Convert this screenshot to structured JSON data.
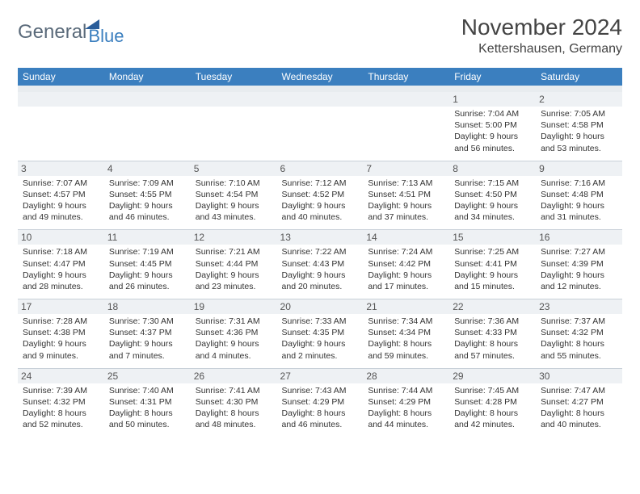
{
  "brand": {
    "name_gray": "General",
    "name_blue": "Blue"
  },
  "title": "November 2024",
  "location": "Kettershausen, Germany",
  "colors": {
    "header_bg": "#3b7fbf",
    "header_text": "#ffffff",
    "daynum_bg": "#eef1f4",
    "body_text": "#333333",
    "border": "#c8d0d8",
    "logo_gray": "#5a6a7a",
    "logo_blue": "#3b7fbf",
    "logo_triangle": "#2a5d9a",
    "background": "#ffffff"
  },
  "typography": {
    "title_fontsize": 28,
    "location_fontsize": 16,
    "header_fontsize": 12,
    "cell_fontsize": 10.5,
    "font_family": "Arial"
  },
  "day_headers": [
    "Sunday",
    "Monday",
    "Tuesday",
    "Wednesday",
    "Thursday",
    "Friday",
    "Saturday"
  ],
  "weeks": [
    [
      {
        "n": "",
        "sr": "",
        "ss": "",
        "dl": ""
      },
      {
        "n": "",
        "sr": "",
        "ss": "",
        "dl": ""
      },
      {
        "n": "",
        "sr": "",
        "ss": "",
        "dl": ""
      },
      {
        "n": "",
        "sr": "",
        "ss": "",
        "dl": ""
      },
      {
        "n": "",
        "sr": "",
        "ss": "",
        "dl": ""
      },
      {
        "n": "1",
        "sr": "Sunrise: 7:04 AM",
        "ss": "Sunset: 5:00 PM",
        "dl": "Daylight: 9 hours and 56 minutes."
      },
      {
        "n": "2",
        "sr": "Sunrise: 7:05 AM",
        "ss": "Sunset: 4:58 PM",
        "dl": "Daylight: 9 hours and 53 minutes."
      }
    ],
    [
      {
        "n": "3",
        "sr": "Sunrise: 7:07 AM",
        "ss": "Sunset: 4:57 PM",
        "dl": "Daylight: 9 hours and 49 minutes."
      },
      {
        "n": "4",
        "sr": "Sunrise: 7:09 AM",
        "ss": "Sunset: 4:55 PM",
        "dl": "Daylight: 9 hours and 46 minutes."
      },
      {
        "n": "5",
        "sr": "Sunrise: 7:10 AM",
        "ss": "Sunset: 4:54 PM",
        "dl": "Daylight: 9 hours and 43 minutes."
      },
      {
        "n": "6",
        "sr": "Sunrise: 7:12 AM",
        "ss": "Sunset: 4:52 PM",
        "dl": "Daylight: 9 hours and 40 minutes."
      },
      {
        "n": "7",
        "sr": "Sunrise: 7:13 AM",
        "ss": "Sunset: 4:51 PM",
        "dl": "Daylight: 9 hours and 37 minutes."
      },
      {
        "n": "8",
        "sr": "Sunrise: 7:15 AM",
        "ss": "Sunset: 4:50 PM",
        "dl": "Daylight: 9 hours and 34 minutes."
      },
      {
        "n": "9",
        "sr": "Sunrise: 7:16 AM",
        "ss": "Sunset: 4:48 PM",
        "dl": "Daylight: 9 hours and 31 minutes."
      }
    ],
    [
      {
        "n": "10",
        "sr": "Sunrise: 7:18 AM",
        "ss": "Sunset: 4:47 PM",
        "dl": "Daylight: 9 hours and 28 minutes."
      },
      {
        "n": "11",
        "sr": "Sunrise: 7:19 AM",
        "ss": "Sunset: 4:45 PM",
        "dl": "Daylight: 9 hours and 26 minutes."
      },
      {
        "n": "12",
        "sr": "Sunrise: 7:21 AM",
        "ss": "Sunset: 4:44 PM",
        "dl": "Daylight: 9 hours and 23 minutes."
      },
      {
        "n": "13",
        "sr": "Sunrise: 7:22 AM",
        "ss": "Sunset: 4:43 PM",
        "dl": "Daylight: 9 hours and 20 minutes."
      },
      {
        "n": "14",
        "sr": "Sunrise: 7:24 AM",
        "ss": "Sunset: 4:42 PM",
        "dl": "Daylight: 9 hours and 17 minutes."
      },
      {
        "n": "15",
        "sr": "Sunrise: 7:25 AM",
        "ss": "Sunset: 4:41 PM",
        "dl": "Daylight: 9 hours and 15 minutes."
      },
      {
        "n": "16",
        "sr": "Sunrise: 7:27 AM",
        "ss": "Sunset: 4:39 PM",
        "dl": "Daylight: 9 hours and 12 minutes."
      }
    ],
    [
      {
        "n": "17",
        "sr": "Sunrise: 7:28 AM",
        "ss": "Sunset: 4:38 PM",
        "dl": "Daylight: 9 hours and 9 minutes."
      },
      {
        "n": "18",
        "sr": "Sunrise: 7:30 AM",
        "ss": "Sunset: 4:37 PM",
        "dl": "Daylight: 9 hours and 7 minutes."
      },
      {
        "n": "19",
        "sr": "Sunrise: 7:31 AM",
        "ss": "Sunset: 4:36 PM",
        "dl": "Daylight: 9 hours and 4 minutes."
      },
      {
        "n": "20",
        "sr": "Sunrise: 7:33 AM",
        "ss": "Sunset: 4:35 PM",
        "dl": "Daylight: 9 hours and 2 minutes."
      },
      {
        "n": "21",
        "sr": "Sunrise: 7:34 AM",
        "ss": "Sunset: 4:34 PM",
        "dl": "Daylight: 8 hours and 59 minutes."
      },
      {
        "n": "22",
        "sr": "Sunrise: 7:36 AM",
        "ss": "Sunset: 4:33 PM",
        "dl": "Daylight: 8 hours and 57 minutes."
      },
      {
        "n": "23",
        "sr": "Sunrise: 7:37 AM",
        "ss": "Sunset: 4:32 PM",
        "dl": "Daylight: 8 hours and 55 minutes."
      }
    ],
    [
      {
        "n": "24",
        "sr": "Sunrise: 7:39 AM",
        "ss": "Sunset: 4:32 PM",
        "dl": "Daylight: 8 hours and 52 minutes."
      },
      {
        "n": "25",
        "sr": "Sunrise: 7:40 AM",
        "ss": "Sunset: 4:31 PM",
        "dl": "Daylight: 8 hours and 50 minutes."
      },
      {
        "n": "26",
        "sr": "Sunrise: 7:41 AM",
        "ss": "Sunset: 4:30 PM",
        "dl": "Daylight: 8 hours and 48 minutes."
      },
      {
        "n": "27",
        "sr": "Sunrise: 7:43 AM",
        "ss": "Sunset: 4:29 PM",
        "dl": "Daylight: 8 hours and 46 minutes."
      },
      {
        "n": "28",
        "sr": "Sunrise: 7:44 AM",
        "ss": "Sunset: 4:29 PM",
        "dl": "Daylight: 8 hours and 44 minutes."
      },
      {
        "n": "29",
        "sr": "Sunrise: 7:45 AM",
        "ss": "Sunset: 4:28 PM",
        "dl": "Daylight: 8 hours and 42 minutes."
      },
      {
        "n": "30",
        "sr": "Sunrise: 7:47 AM",
        "ss": "Sunset: 4:27 PM",
        "dl": "Daylight: 8 hours and 40 minutes."
      }
    ]
  ]
}
